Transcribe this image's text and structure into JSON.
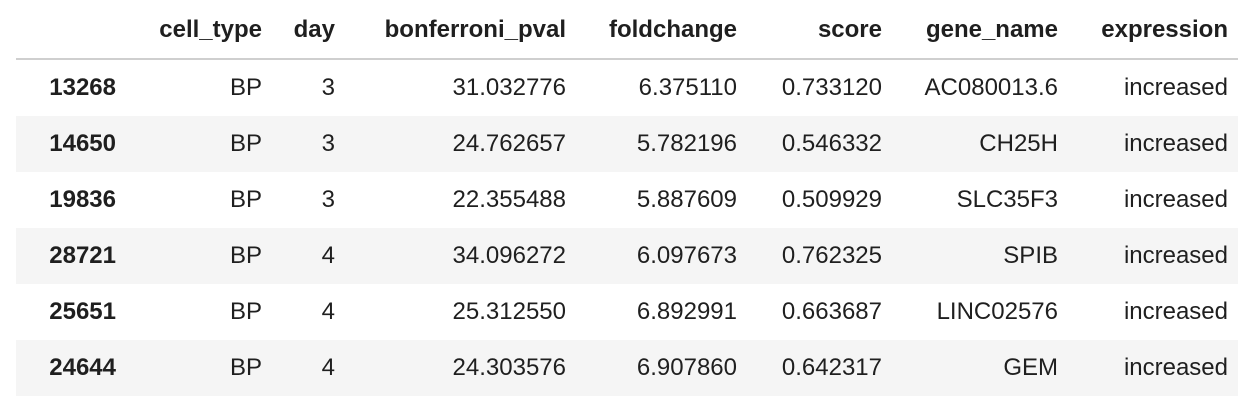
{
  "table": {
    "columns": [
      "",
      "cell_type",
      "day",
      "bonferroni_pval",
      "foldchange",
      "score",
      "gene_name",
      "expression"
    ],
    "rows": [
      {
        "index": "13268",
        "cell_type": "BP",
        "day": "3",
        "bonferroni_pval": "31.032776",
        "foldchange": "6.375110",
        "score": "0.733120",
        "gene_name": "AC080013.6",
        "expression": "increased"
      },
      {
        "index": "14650",
        "cell_type": "BP",
        "day": "3",
        "bonferroni_pval": "24.762657",
        "foldchange": "5.782196",
        "score": "0.546332",
        "gene_name": "CH25H",
        "expression": "increased"
      },
      {
        "index": "19836",
        "cell_type": "BP",
        "day": "3",
        "bonferroni_pval": "22.355488",
        "foldchange": "5.887609",
        "score": "0.509929",
        "gene_name": "SLC35F3",
        "expression": "increased"
      },
      {
        "index": "28721",
        "cell_type": "BP",
        "day": "4",
        "bonferroni_pval": "34.096272",
        "foldchange": "6.097673",
        "score": "0.762325",
        "gene_name": "SPIB",
        "expression": "increased"
      },
      {
        "index": "25651",
        "cell_type": "BP",
        "day": "4",
        "bonferroni_pval": "25.312550",
        "foldchange": "6.892991",
        "score": "0.663687",
        "gene_name": "LINC02576",
        "expression": "increased"
      },
      {
        "index": "24644",
        "cell_type": "BP",
        "day": "4",
        "bonferroni_pval": "24.303576",
        "foldchange": "6.907860",
        "score": "0.642317",
        "gene_name": "GEM",
        "expression": "increased"
      }
    ]
  },
  "colors": {
    "header_border": "#cfcfcf",
    "stripe": "#f5f5f5",
    "text": "#1f1f1f"
  }
}
